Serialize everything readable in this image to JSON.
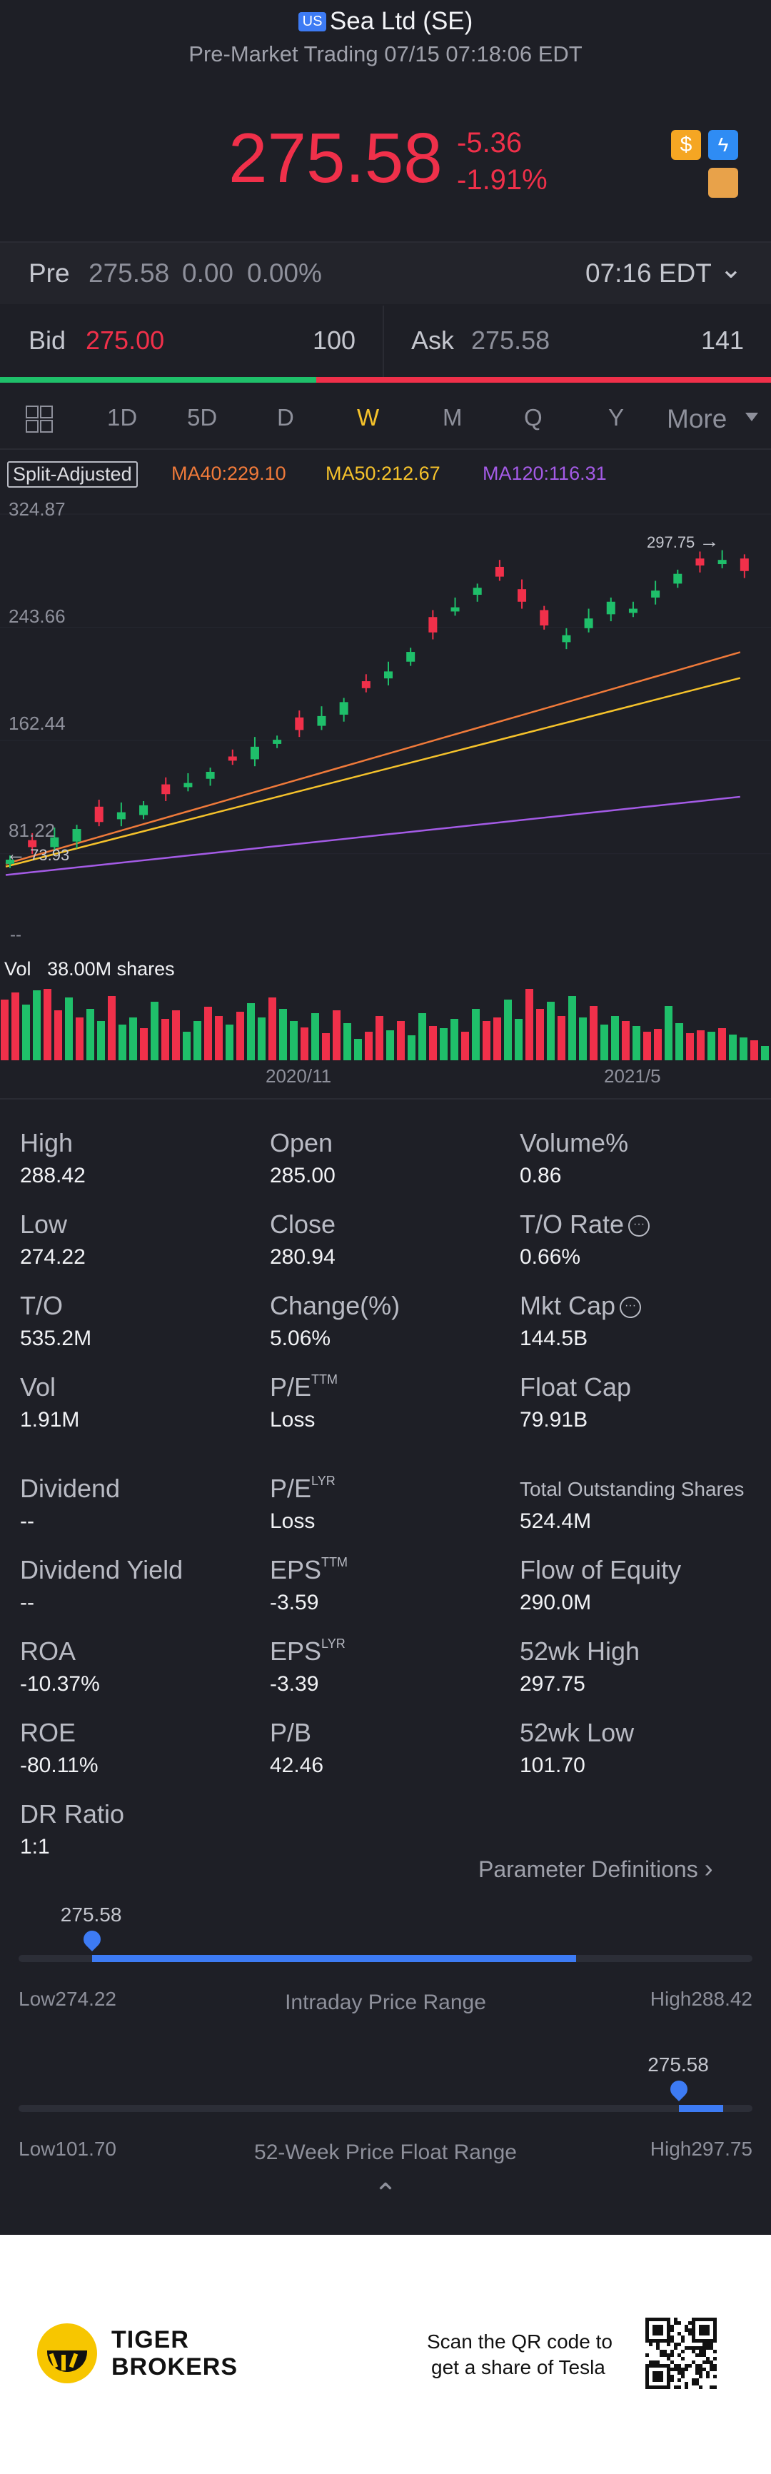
{
  "header": {
    "market_badge": "US",
    "title": "Sea Ltd (SE)",
    "subtitle": "Pre-Market Trading 07/15 07:18:06 EDT"
  },
  "quote": {
    "price": "275.58",
    "change": "-5.36",
    "change_pct": "-1.91%",
    "color": "#f0304a"
  },
  "premarket": {
    "label": "Pre",
    "price": "275.58",
    "change": "0.00",
    "change_pct": "0.00%",
    "time": "07:16 EDT"
  },
  "orderbook": {
    "bid_label": "Bid",
    "bid_price": "275.00",
    "bid_size": "100",
    "ask_label": "Ask",
    "ask_price": "275.58",
    "ask_size": "141",
    "bid_share": 0.41
  },
  "tabs": [
    "1D",
    "5D",
    "D",
    "W",
    "M",
    "Q",
    "Y",
    "More"
  ],
  "active_tab": "W",
  "indicators": {
    "adjust": "Split-Adjusted",
    "ma40": "MA40:229.10",
    "ma50": "MA50:212.67",
    "ma120": "MA120:116.31",
    "colors": {
      "ma40": "#f07a3a",
      "ma50": "#f5c22b",
      "ma120": "#a45be6"
    }
  },
  "chart_labels": {
    "y_top": "324.87",
    "y_mid": "243.66",
    "y_low": "162.44",
    "y_bottom": "81.22",
    "max_marker": "297.75",
    "min_marker": "73.93",
    "dashes": "--",
    "vol_label": "Vol",
    "vol_value": "38.00M shares",
    "x_ticks": [
      "2020/11",
      "2021/5"
    ]
  },
  "chart_data": {
    "type": "candlestick",
    "ylim": [
      73.93,
      324.87
    ],
    "ma_lines": [
      "MA40",
      "MA50",
      "MA120"
    ],
    "close_trend_approx": [
      77,
      86,
      93,
      99,
      104,
      111,
      116,
      124,
      132,
      140,
      148,
      158,
      163,
      170,
      180,
      190,
      200,
      212,
      226,
      240,
      258,
      272,
      280,
      262,
      245,
      238,
      250,
      262,
      257,
      270,
      282,
      288,
      292,
      284
    ]
  },
  "stats": [
    [
      {
        "label": "High",
        "value": "288.42"
      },
      {
        "label": "Open",
        "value": "285.00"
      },
      {
        "label": "Volume%",
        "value": "0.86"
      }
    ],
    [
      {
        "label": "Low",
        "value": "274.22"
      },
      {
        "label": "Close",
        "value": "280.94"
      },
      {
        "label": "T/O Rate",
        "value": "0.66%"
      }
    ],
    [
      {
        "label": "T/O",
        "value": "535.2M"
      },
      {
        "label": "Change(%)",
        "value": "5.06%"
      },
      {
        "label": "Mkt Cap",
        "value": "144.5B"
      }
    ],
    [
      {
        "label": "Vol",
        "value": "1.91M"
      },
      {
        "label": "P/E",
        "sup": "TTM",
        "value": "Loss"
      },
      {
        "label": "Float Cap",
        "value": "79.91B"
      }
    ],
    [
      {
        "label": "Dividend",
        "value": "--"
      },
      {
        "label": "P/E",
        "sup": "LYR",
        "value": "Loss"
      },
      {
        "label": "Total Outstanding Shares",
        "value": "524.4M"
      }
    ],
    [
      {
        "label": "Dividend Yield",
        "value": "--"
      },
      {
        "label": "EPS",
        "sup": "TTM",
        "value": "-3.59"
      },
      {
        "label": "Flow of Equity",
        "value": "290.0M"
      }
    ],
    [
      {
        "label": "ROA",
        "value": "-10.37%"
      },
      {
        "label": "EPS",
        "sup": "LYR",
        "value": "-3.39"
      },
      {
        "label": "52wk High",
        "value": "297.75"
      }
    ],
    [
      {
        "label": "ROE",
        "value": "-80.11%"
      },
      {
        "label": "P/B",
        "value": "42.46"
      },
      {
        "label": "52wk Low",
        "value": "101.70"
      }
    ],
    [
      {
        "label": "DR Ratio",
        "value": "1:1"
      }
    ]
  ],
  "param_link": "Parameter Definitions",
  "intraday_range": {
    "current": "275.58",
    "low": "Low274.22",
    "high": "High288.42",
    "title": "Intraday Price Range",
    "position_fraction": 0.1
  },
  "week52_range": {
    "current": "275.58",
    "low": "Low101.70",
    "high": "High297.75",
    "title": "52-Week Price Float Range",
    "position_fraction": 0.9
  },
  "footer": {
    "brand_line1": "TIGER",
    "brand_line2": "BROKERS",
    "scan_line1": "Scan the QR code to",
    "scan_line2": "get a share of Tesla"
  }
}
